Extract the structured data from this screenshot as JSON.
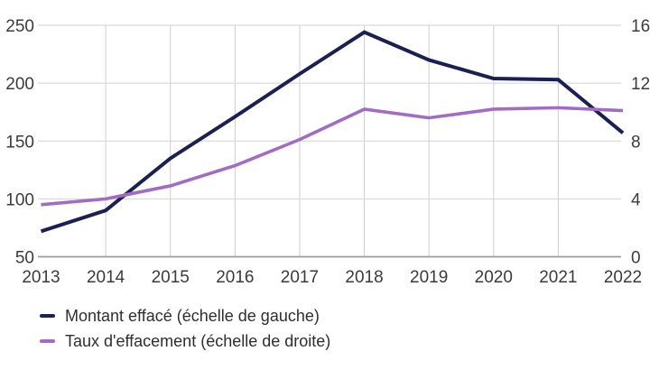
{
  "chart_data": {
    "type": "line",
    "title": "",
    "categories": [
      "2013",
      "2014",
      "2015",
      "2016",
      "2017",
      "2018",
      "2019",
      "2020",
      "2021",
      "2022"
    ],
    "series": [
      {
        "name": "Montant effacé (échelle de gauche)",
        "axis": "left",
        "color": "#1b2053",
        "values": [
          72,
          90,
          135,
          171,
          208,
          244,
          220,
          204,
          203,
          157
        ]
      },
      {
        "name": "Taux d'effacement (échelle de droite)",
        "axis": "right",
        "color": "#a16cc1",
        "values": [
          3.6,
          4.0,
          4.9,
          6.3,
          8.1,
          10.2,
          9.6,
          10.2,
          10.3,
          10.1
        ]
      }
    ],
    "left_axis": {
      "min": 50,
      "max": 250,
      "ticks": [
        250,
        200,
        150,
        100,
        50
      ]
    },
    "right_axis": {
      "min": 0,
      "max": 16,
      "ticks": [
        16,
        12,
        8,
        4,
        0
      ]
    },
    "grid": true,
    "legend_position": "bottom-left",
    "colors": {
      "gridline": "#d2d2d2",
      "axis_line": "#9b9b9b",
      "tick_text": "#3b3b3b",
      "legend_text": "#2e2e2e"
    }
  },
  "legend": {
    "items": [
      {
        "label": "Montant effacé (échelle de gauche)"
      },
      {
        "label": "Taux d'effacement (échelle de droite)"
      }
    ]
  }
}
